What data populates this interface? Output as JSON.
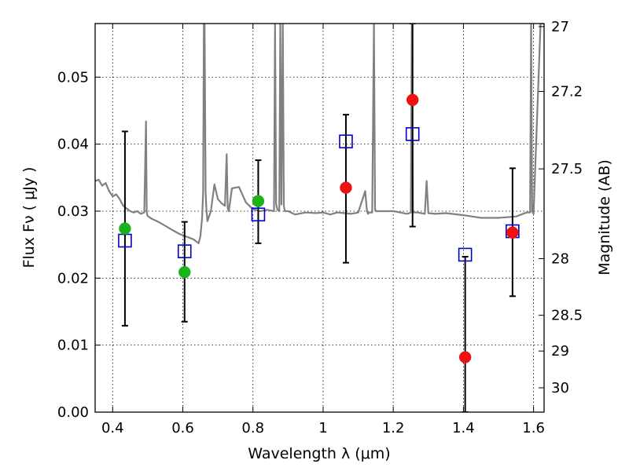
{
  "chart_data": {
    "type": "scatter",
    "xlabel": "Wavelength  λ (μm)",
    "ylabel": "Flux  Fν  ( μJy )",
    "y2label": "Magnitude (AB)",
    "xlim": [
      0.35,
      1.63
    ],
    "ylim": [
      0.0,
      0.058
    ],
    "grid": true,
    "x_ticks": [
      {
        "value": 0.4,
        "label": "0.4"
      },
      {
        "value": 0.6,
        "label": "0.6"
      },
      {
        "value": 0.8,
        "label": "0.8"
      },
      {
        "value": 1.0,
        "label": "1"
      },
      {
        "value": 1.2,
        "label": "1.2"
      },
      {
        "value": 1.4,
        "label": "1.4"
      },
      {
        "value": 1.6,
        "label": "1.6"
      }
    ],
    "y_ticks": [
      {
        "value": 0.0,
        "label": "0.00"
      },
      {
        "value": 0.01,
        "label": "0.01"
      },
      {
        "value": 0.02,
        "label": "0.02"
      },
      {
        "value": 0.03,
        "label": "0.03"
      },
      {
        "value": 0.04,
        "label": "0.04"
      },
      {
        "value": 0.05,
        "label": "0.05"
      }
    ],
    "y2_ticks": [
      {
        "value": 27,
        "label": "27"
      },
      {
        "value": 27.2,
        "label": "27.2"
      },
      {
        "value": 27.5,
        "label": "27.5"
      },
      {
        "value": 28,
        "label": "28"
      },
      {
        "value": 28.5,
        "label": "28.5"
      },
      {
        "value": 29,
        "label": "29"
      },
      {
        "value": 30,
        "label": "30"
      }
    ],
    "series": [
      {
        "kind": "model_spectrum",
        "color": "#808080",
        "x": [
          0.35,
          0.36,
          0.37,
          0.38,
          0.39,
          0.4,
          0.41,
          0.42,
          0.43,
          0.44,
          0.45,
          0.46,
          0.47,
          0.48,
          0.49,
          0.495,
          0.497,
          0.499,
          0.51,
          0.53,
          0.55,
          0.57,
          0.59,
          0.61,
          0.63,
          0.645,
          0.65,
          0.655,
          0.658,
          0.66,
          0.662,
          0.665,
          0.667,
          0.67,
          0.68,
          0.69,
          0.7,
          0.71,
          0.72,
          0.725,
          0.728,
          0.731,
          0.74,
          0.76,
          0.78,
          0.8,
          0.82,
          0.84,
          0.86,
          0.863,
          0.866,
          0.87,
          0.875,
          0.878,
          0.881,
          0.885,
          0.888,
          0.891,
          0.9,
          0.92,
          0.95,
          0.98,
          1.0,
          1.02,
          1.04,
          1.06,
          1.08,
          1.1,
          1.12,
          1.125,
          1.128,
          1.131,
          1.14,
          1.145,
          1.148,
          1.151,
          1.17,
          1.2,
          1.22,
          1.24,
          1.25,
          1.253,
          1.256,
          1.26,
          1.27,
          1.29,
          1.295,
          1.3,
          1.32,
          1.35,
          1.4,
          1.45,
          1.5,
          1.55,
          1.58,
          1.59,
          1.593,
          1.596,
          1.6,
          1.62,
          1.63
        ],
        "y": [
          0.0345,
          0.0347,
          0.0338,
          0.0342,
          0.033,
          0.0322,
          0.0325,
          0.0318,
          0.0308,
          0.0304,
          0.03,
          0.0298,
          0.03,
          0.0296,
          0.0298,
          0.0434,
          0.03,
          0.0293,
          0.0289,
          0.0284,
          0.0278,
          0.0272,
          0.0266,
          0.0262,
          0.0258,
          0.0252,
          0.0262,
          0.029,
          0.033,
          0.058,
          0.058,
          0.033,
          0.0305,
          0.0285,
          0.03,
          0.034,
          0.0318,
          0.0312,
          0.0308,
          0.0385,
          0.0305,
          0.03,
          0.0334,
          0.0336,
          0.0313,
          0.0303,
          0.03,
          0.0302,
          0.03,
          0.058,
          0.031,
          0.0302,
          0.03,
          0.058,
          0.031,
          0.058,
          0.0308,
          0.03,
          0.03,
          0.0295,
          0.0298,
          0.0297,
          0.0298,
          0.0295,
          0.0298,
          0.0297,
          0.0296,
          0.0298,
          0.033,
          0.03,
          0.0296,
          0.0298,
          0.0298,
          0.058,
          0.0302,
          0.03,
          0.03,
          0.03,
          0.0298,
          0.0296,
          0.0298,
          0.058,
          0.03,
          0.0298,
          0.0298,
          0.0296,
          0.0345,
          0.0297,
          0.0296,
          0.0297,
          0.0294,
          0.029,
          0.029,
          0.0292,
          0.0298,
          0.0298,
          0.058,
          0.03,
          0.0296,
          0.058,
          0.058
        ]
      },
      {
        "kind": "observed",
        "marker": "open-square",
        "color": "#0000cc",
        "points": [
          {
            "x": 0.435,
            "y": 0.0256,
            "yerr_low": 0.0129,
            "yerr_high": 0.0419
          },
          {
            "x": 0.605,
            "y": 0.024,
            "yerr_low": 0.0135,
            "yerr_high": 0.0284
          },
          {
            "x": 0.815,
            "y": 0.0295,
            "yerr_low": 0.0252,
            "yerr_high": 0.0376
          },
          {
            "x": 1.065,
            "y": 0.0404,
            "yerr_low": 0.0223,
            "yerr_high": 0.0444
          },
          {
            "x": 1.255,
            "y": 0.0415,
            "yerr_low": 0.0277,
            "yerr_high": 0.058
          },
          {
            "x": 1.405,
            "y": 0.0235,
            "yerr_low": 0.0,
            "yerr_high": 0.0232
          },
          {
            "x": 1.54,
            "y": 0.027,
            "yerr_low": 0.0173,
            "yerr_high": 0.0364
          }
        ]
      },
      {
        "kind": "model_fit",
        "marker": "filled-circle",
        "points": [
          {
            "x": 0.435,
            "y": 0.0274,
            "color": "#1ab31a"
          },
          {
            "x": 0.605,
            "y": 0.0209,
            "color": "#1ab31a"
          },
          {
            "x": 0.815,
            "y": 0.0315,
            "color": "#1ab31a"
          },
          {
            "x": 1.065,
            "y": 0.0335,
            "color": "#ee1111"
          },
          {
            "x": 1.255,
            "y": 0.0466,
            "color": "#ee1111"
          },
          {
            "x": 1.405,
            "y": 0.0082,
            "color": "#ee1111"
          },
          {
            "x": 1.54,
            "y": 0.0268,
            "color": "#ee1111"
          }
        ]
      }
    ]
  }
}
